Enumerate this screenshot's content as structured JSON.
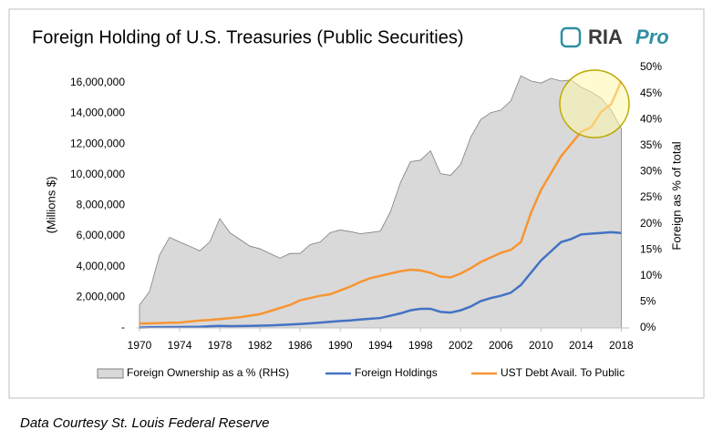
{
  "chart_data": {
    "type": "area-line",
    "title": "Foreign Holding of U.S. Treasuries (Public Securities)",
    "logo_text": "RIA",
    "logo_accent": "Pro",
    "ylabel": "(Millions $)",
    "y2label": "Foreign as % of total",
    "source": "Data Courtesy St. Louis Federal Reserve",
    "x": [
      1970,
      1971,
      1972,
      1973,
      1974,
      1975,
      1976,
      1977,
      1978,
      1979,
      1980,
      1981,
      1982,
      1983,
      1984,
      1985,
      1986,
      1987,
      1988,
      1989,
      1990,
      1991,
      1992,
      1993,
      1994,
      1995,
      1996,
      1997,
      1998,
      1999,
      2000,
      2001,
      2002,
      2003,
      2004,
      2005,
      2006,
      2007,
      2008,
      2009,
      2010,
      2011,
      2012,
      2013,
      2014,
      2015,
      2016,
      2017,
      2018
    ],
    "xlim": [
      1970,
      2018.6
    ],
    "xticks": [
      1970,
      1974,
      1978,
      1982,
      1986,
      1990,
      1994,
      1998,
      2002,
      2006,
      2010,
      2014,
      2018
    ],
    "ylim": [
      0,
      17000000
    ],
    "yticks": [
      {
        "value": 0,
        "label": "-"
      },
      {
        "value": 2000000,
        "label": "2,000,000"
      },
      {
        "value": 4000000,
        "label": "4,000,000"
      },
      {
        "value": 6000000,
        "label": "6,000,000"
      },
      {
        "value": 8000000,
        "label": "8,000,000"
      },
      {
        "value": 10000000,
        "label": "10,000,000"
      },
      {
        "value": 12000000,
        "label": "12,000,000"
      },
      {
        "value": 14000000,
        "label": "14,000,000"
      },
      {
        "value": 16000000,
        "label": "16,000,000"
      }
    ],
    "y2lim": [
      0,
      50
    ],
    "y2ticks": [
      {
        "value": 0,
        "label": "0%"
      },
      {
        "value": 5,
        "label": "5%"
      },
      {
        "value": 10,
        "label": "10%"
      },
      {
        "value": 15,
        "label": "15%"
      },
      {
        "value": 20,
        "label": "20%"
      },
      {
        "value": 25,
        "label": "25%"
      },
      {
        "value": 30,
        "label": "30%"
      },
      {
        "value": 35,
        "label": "35%"
      },
      {
        "value": 40,
        "label": "40%"
      },
      {
        "value": 45,
        "label": "45%"
      },
      {
        "value": 50,
        "label": "50%"
      }
    ],
    "series": [
      {
        "name": "Foreign Ownership as a % (RHS)",
        "kind": "area",
        "axis": "y2",
        "color": "#d9d9d9",
        "values": [
          4.4,
          7,
          14,
          17.4,
          16.5,
          15.7,
          14.8,
          16.5,
          21,
          18.3,
          17,
          15.7,
          15.2,
          14.3,
          13.4,
          14.3,
          14.3,
          16,
          16.5,
          18.3,
          18.8,
          18.5,
          18.1,
          18.3,
          18.6,
          22.3,
          27.9,
          31.9,
          32.2,
          34,
          29.6,
          29.3,
          31.4,
          36.6,
          40,
          41.3,
          41.8,
          43.6,
          48.4,
          47.4,
          47,
          47.9,
          47.4,
          47.6,
          46.2,
          45.3,
          44.1,
          41.8,
          38.3
        ]
      },
      {
        "name": "Foreign Holdings",
        "kind": "line",
        "color": "#4472c4",
        "values": [
          20000,
          45000,
          55000,
          55000,
          58000,
          66000,
          78000,
          110000,
          135000,
          120000,
          125000,
          135000,
          150000,
          165000,
          190000,
          220000,
          260000,
          300000,
          350000,
          400000,
          450000,
          490000,
          550000,
          600000,
          650000,
          800000,
          950000,
          1150000,
          1250000,
          1250000,
          1050000,
          1000000,
          1150000,
          1400000,
          1750000,
          1950000,
          2100000,
          2300000,
          2800000,
          3600000,
          4400000,
          5000000,
          5600000,
          5800000,
          6100000,
          6150000,
          6200000,
          6250000,
          6200000
        ]
      },
      {
        "name": "UST Debt Avail. To Public",
        "kind": "line",
        "color": "#f79533",
        "values": [
          290000,
          300000,
          320000,
          340000,
          350000,
          420000,
          480000,
          520000,
          580000,
          640000,
          700000,
          800000,
          900000,
          1100000,
          1300000,
          1500000,
          1800000,
          1950000,
          2100000,
          2200000,
          2450000,
          2700000,
          3000000,
          3250000,
          3400000,
          3550000,
          3700000,
          3800000,
          3750000,
          3600000,
          3350000,
          3300000,
          3550000,
          3900000,
          4300000,
          4600000,
          4900000,
          5100000,
          5600000,
          7500000,
          9000000,
          10100000,
          11200000,
          12000000,
          12800000,
          13100000,
          14100000,
          14600000,
          16100000
        ]
      }
    ]
  }
}
